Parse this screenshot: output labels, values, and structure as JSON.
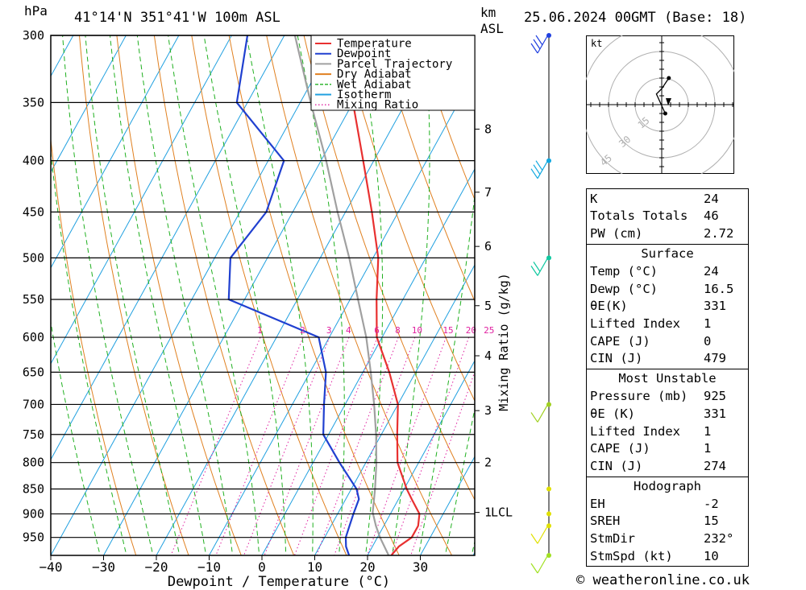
{
  "header": {
    "hpa_unit": "hPa",
    "location": "41°14'N  351°41'W  100m  ASL",
    "km_unit": "km",
    "asl_unit": "ASL",
    "datetime": "25.06.2024  00GMT  (Base: 18)"
  },
  "chart_data": {
    "type": "line",
    "subtype": "skew-T log-P",
    "xlabel": "Dewpoint / Temperature (°C)",
    "ylabel_left": "hPa",
    "ylabel_right": "Mixing Ratio (g/kg)",
    "x_ticks": [
      -40,
      -30,
      -20,
      -10,
      0,
      10,
      20,
      30
    ],
    "pressure_levels": [
      300,
      350,
      400,
      450,
      500,
      550,
      600,
      650,
      700,
      750,
      800,
      850,
      900,
      950
    ],
    "xlim": [
      -40,
      40
    ],
    "ylim_hpa": [
      990,
      300
    ],
    "height_ticks_km": [
      {
        "label": "8",
        "p": 372
      },
      {
        "label": "7",
        "p": 430
      },
      {
        "label": "6",
        "p": 487
      },
      {
        "label": "5",
        "p": 558
      },
      {
        "label": "4",
        "p": 626
      },
      {
        "label": "3",
        "p": 710
      },
      {
        "label": "2",
        "p": 800
      },
      {
        "label": "1",
        "p": 897
      }
    ],
    "lcl_label": "LCL",
    "lcl_p": 897,
    "mixing_ratio_labels": [
      "1",
      "2",
      "3",
      "4",
      "6",
      "8",
      "10",
      "15",
      "20",
      "25"
    ],
    "mixing_ratio_values": [
      1,
      2,
      3,
      4,
      6,
      8,
      10,
      15,
      20,
      25
    ],
    "legend": [
      {
        "name": "Temperature",
        "color": "#e83030",
        "style": "solid"
      },
      {
        "name": "Dewpoint",
        "color": "#2040d0",
        "style": "solid"
      },
      {
        "name": "Parcel Trajectory",
        "color": "#a0a0a0",
        "style": "solid"
      },
      {
        "name": "Dry Adiabat",
        "color": "#e08020",
        "style": "solid"
      },
      {
        "name": "Wet Adiabat",
        "color": "#20b020",
        "style": "dashed"
      },
      {
        "name": "Isotherm",
        "color": "#20a0e0",
        "style": "solid"
      },
      {
        "name": "Mixing Ratio",
        "color": "#e020a0",
        "style": "dotted"
      }
    ],
    "series": [
      {
        "name": "Temperature",
        "color": "#e83030",
        "points": [
          [
            990,
            24.5
          ],
          [
            970,
            25
          ],
          [
            950,
            26.5
          ],
          [
            925,
            26.5
          ],
          [
            900,
            25.5
          ],
          [
            870,
            22.5
          ],
          [
            850,
            20.5
          ],
          [
            800,
            16
          ],
          [
            750,
            13
          ],
          [
            700,
            10
          ],
          [
            650,
            5
          ],
          [
            600,
            -1
          ],
          [
            550,
            -5
          ],
          [
            500,
            -9
          ],
          [
            450,
            -15
          ],
          [
            400,
            -22
          ],
          [
            350,
            -30
          ],
          [
            300,
            -38
          ]
        ]
      },
      {
        "name": "Dewpoint",
        "color": "#2040d0",
        "points": [
          [
            990,
            16.5
          ],
          [
            970,
            15
          ],
          [
            950,
            14
          ],
          [
            925,
            13.5
          ],
          [
            900,
            13
          ],
          [
            870,
            12.5
          ],
          [
            850,
            11
          ],
          [
            800,
            5
          ],
          [
            750,
            -1
          ],
          [
            700,
            -4
          ],
          [
            650,
            -7
          ],
          [
            600,
            -12
          ],
          [
            550,
            -33
          ],
          [
            500,
            -37
          ],
          [
            450,
            -35
          ],
          [
            400,
            -37
          ],
          [
            350,
            -52
          ],
          [
            300,
            -57
          ]
        ]
      },
      {
        "name": "Parcel Trajectory",
        "color": "#a0a0a0",
        "points": [
          [
            990,
            24
          ],
          [
            950,
            20.5
          ],
          [
            925,
            18.5
          ],
          [
            897,
            16.5
          ],
          [
            850,
            14.5
          ],
          [
            800,
            12
          ],
          [
            750,
            9
          ],
          [
            700,
            5.5
          ],
          [
            650,
            1.5
          ],
          [
            600,
            -3
          ],
          [
            550,
            -8.5
          ],
          [
            500,
            -14.5
          ],
          [
            450,
            -21.5
          ],
          [
            400,
            -29
          ],
          [
            350,
            -38
          ],
          [
            300,
            -48
          ]
        ]
      }
    ]
  },
  "hodograph": {
    "unit": "kt",
    "ring_labels": [
      "15",
      "30",
      "45"
    ],
    "ring_values_kt": [
      15,
      30,
      45
    ],
    "trace_uv_kt": [
      [
        2,
        -5
      ],
      [
        -3,
        6
      ],
      [
        0,
        9
      ],
      [
        4,
        15
      ]
    ]
  },
  "indices": {
    "top": [
      {
        "label": "K",
        "value": "24"
      },
      {
        "label": "Totals Totals",
        "value": "46"
      },
      {
        "label": "PW (cm)",
        "value": "2.72"
      }
    ],
    "surface": {
      "title": "Surface",
      "rows": [
        {
          "label": "Temp (°C)",
          "value": "24"
        },
        {
          "label": "Dewp (°C)",
          "value": "16.5"
        },
        {
          "label": "θE(K)",
          "value": "331"
        },
        {
          "label": "Lifted Index",
          "value": "1"
        },
        {
          "label": "CAPE (J)",
          "value": "0"
        },
        {
          "label": "CIN (J)",
          "value": "479"
        }
      ]
    },
    "most_unstable": {
      "title": "Most Unstable",
      "rows": [
        {
          "label": "Pressure (mb)",
          "value": "925"
        },
        {
          "label": "θE (K)",
          "value": "331"
        },
        {
          "label": "Lifted Index",
          "value": "1"
        },
        {
          "label": "CAPE (J)",
          "value": "1"
        },
        {
          "label": "CIN (J)",
          "value": "274"
        }
      ]
    },
    "hodograph_params": {
      "title": "Hodograph",
      "rows": [
        {
          "label": "EH",
          "value": "-2"
        },
        {
          "label": "SREH",
          "value": "15"
        },
        {
          "label": "StmDir",
          "value": "232°"
        },
        {
          "label": "StmSpd (kt)",
          "value": "10"
        }
      ]
    }
  },
  "wind_profile": {
    "levels": [
      {
        "p": 300,
        "color": "#2040e0",
        "barb_color": "#2040e0",
        "barbs": 3
      },
      {
        "p": 400,
        "color": "#10a8e0",
        "barb_color": "#10a8e0",
        "barbs": 3
      },
      {
        "p": 500,
        "color": "#10c8a0",
        "barb_color": "#10c8a0",
        "barbs": 2
      },
      {
        "p": 700,
        "color": "#a0d020",
        "barb_color": "#a0d020",
        "barbs": 1
      },
      {
        "p": 850,
        "color": "#e0e000",
        "barb_color": "#e0e000",
        "barbs": 0
      },
      {
        "p": 900,
        "color": "#e0e000",
        "barb_color": "#e0e000",
        "barbs": 0
      },
      {
        "p": 925,
        "color": "#e0e000",
        "barb_color": "#e0e000",
        "barbs": 1
      },
      {
        "p": 990,
        "color": "#a0e020",
        "barb_color": "#a0e020",
        "barbs": 1
      }
    ]
  },
  "credit": "© weatheronline.co.uk"
}
